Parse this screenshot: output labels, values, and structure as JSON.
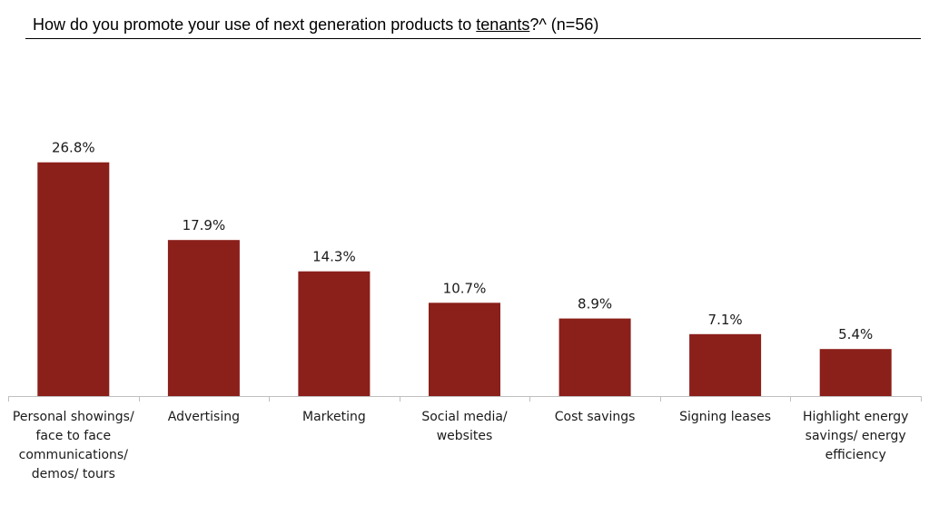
{
  "title": {
    "prefix": "How do you promote your use of next generation products to ",
    "underlined": "tenants",
    "suffix": "?^ (n=56)"
  },
  "colors": {
    "bar": "#8b1f1a",
    "axis": "#bfbfbf"
  },
  "chart_data": {
    "type": "bar",
    "title": "How do you promote your use of next generation products to tenants?^ (n=56)",
    "xlabel": "",
    "ylabel": "",
    "ylim": [
      0,
      30
    ],
    "categories": [
      "Personal showings/ face to face communications/ demos/ tours",
      "Advertising",
      "Marketing",
      "Social media/ websites",
      "Cost savings",
      "Signing leases",
      "Highlight energy savings/ energy efficiency"
    ],
    "category_lines": [
      [
        "Personal showings/",
        "face to face",
        "communications/",
        "demos/ tours"
      ],
      [
        "Advertising"
      ],
      [
        "Marketing"
      ],
      [
        "Social media/",
        "websites"
      ],
      [
        "Cost savings"
      ],
      [
        "Signing leases"
      ],
      [
        "Highlight energy",
        "savings/ energy",
        "efficiency"
      ]
    ],
    "values": [
      26.8,
      17.9,
      14.3,
      10.7,
      8.9,
      7.1,
      5.4
    ],
    "data_labels": [
      "26.8%",
      "17.9%",
      "14.3%",
      "10.7%",
      "8.9%",
      "7.1%",
      "5.4%"
    ]
  }
}
